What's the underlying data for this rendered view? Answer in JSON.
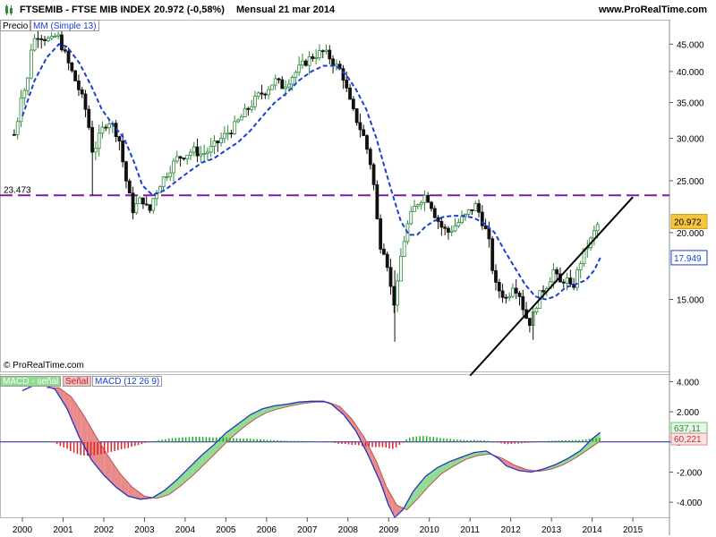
{
  "header": {
    "ticker": "FTSEMIB - FTSE MIB INDEX",
    "last": "20.972 (-0,58%)",
    "period": "Mensual  21 mar 2014",
    "site": "www.ProRealTime.com"
  },
  "legend_top": {
    "precio": "Precio",
    "ma": "MM (Simple 13)"
  },
  "legend_bottom": {
    "macd_signal": "MACD - señal",
    "signal": "Señal",
    "macd": "MACD (12 26 9)"
  },
  "copyright": "© ProRealTime.com",
  "colors": {
    "ma": "#1a3fd6",
    "hline": "#7a1fa2",
    "trend": "#000000",
    "up": "#2e8b3a",
    "down": "#111111",
    "hist_pos": "#22aa22",
    "hist_neg": "#dd2222",
    "fill_pos": "#8fdc8f",
    "fill_neg": "#e88a8a"
  },
  "chart_data": [
    {
      "type": "candlestick",
      "scale": "log",
      "x_labels": [
        "2000",
        "2001",
        "2002",
        "2003",
        "2004",
        "2005",
        "2006",
        "2007",
        "2008",
        "2009",
        "2010",
        "2011",
        "2012",
        "2013",
        "2014",
        "2015"
      ],
      "y_ticks": [
        "45.000",
        "40.000",
        "35.000",
        "30.000",
        "25.000",
        "20.000",
        "15.000"
      ],
      "ylim": [
        11000,
        50000
      ],
      "hline": {
        "value": 23473,
        "label": "23.473"
      },
      "last_price": {
        "value": 20972,
        "label": "20.972"
      },
      "ma_last": {
        "value": 17949,
        "label": "17.949"
      },
      "price_path": [
        [
          1999.8,
          30500
        ],
        [
          1999.9,
          33000
        ],
        [
          2000.0,
          38000
        ],
        [
          2000.1,
          36000
        ],
        [
          2000.2,
          44000
        ],
        [
          2000.35,
          47000
        ],
        [
          2000.5,
          46500
        ],
        [
          2000.7,
          45500
        ],
        [
          2000.85,
          47000
        ],
        [
          2001.0,
          44000
        ],
        [
          2001.15,
          41000
        ],
        [
          2001.3,
          38500
        ],
        [
          2001.45,
          36000
        ],
        [
          2001.6,
          33000
        ],
        [
          2001.7,
          28500
        ],
        [
          2001.8,
          29000
        ],
        [
          2001.95,
          31000
        ],
        [
          2002.1,
          32500
        ],
        [
          2002.25,
          31500
        ],
        [
          2002.4,
          29500
        ],
        [
          2002.5,
          26000
        ],
        [
          2002.6,
          24000
        ],
        [
          2002.7,
          22000
        ],
        [
          2002.8,
          22500
        ],
        [
          2002.9,
          23000
        ],
        [
          2003.0,
          23000
        ],
        [
          2003.1,
          21500
        ],
        [
          2003.2,
          23000
        ],
        [
          2003.35,
          24500
        ],
        [
          2003.5,
          25500
        ],
        [
          2003.65,
          26500
        ],
        [
          2003.8,
          27500
        ],
        [
          2004.0,
          28000
        ],
        [
          2004.2,
          28500
        ],
        [
          2004.4,
          28000
        ],
        [
          2004.6,
          28500
        ],
        [
          2004.8,
          29500
        ],
        [
          2005.0,
          30500
        ],
        [
          2005.2,
          31500
        ],
        [
          2005.4,
          33000
        ],
        [
          2005.6,
          34500
        ],
        [
          2005.8,
          36000
        ],
        [
          2006.0,
          37000
        ],
        [
          2006.2,
          38500
        ],
        [
          2006.4,
          37500
        ],
        [
          2006.6,
          39000
        ],
        [
          2006.8,
          40500
        ],
        [
          2007.0,
          42000
        ],
        [
          2007.2,
          43000
        ],
        [
          2007.4,
          43500
        ],
        [
          2007.55,
          42500
        ],
        [
          2007.7,
          41000
        ],
        [
          2007.85,
          40000
        ],
        [
          2008.0,
          36000
        ],
        [
          2008.1,
          34000
        ],
        [
          2008.25,
          32000
        ],
        [
          2008.4,
          30000
        ],
        [
          2008.5,
          28000
        ],
        [
          2008.6,
          26000
        ],
        [
          2008.7,
          21500
        ],
        [
          2008.8,
          19000
        ],
        [
          2008.9,
          18500
        ],
        [
          2009.0,
          17000
        ],
        [
          2009.1,
          14500
        ],
        [
          2009.2,
          15500
        ],
        [
          2009.3,
          18000
        ],
        [
          2009.45,
          20500
        ],
        [
          2009.6,
          22000
        ],
        [
          2009.75,
          23000
        ],
        [
          2009.9,
          23500
        ],
        [
          2010.0,
          23000
        ],
        [
          2010.15,
          21500
        ],
        [
          2010.3,
          20500
        ],
        [
          2010.45,
          20000
        ],
        [
          2010.6,
          20500
        ],
        [
          2010.75,
          21000
        ],
        [
          2010.9,
          21500
        ],
        [
          2011.0,
          22000
        ],
        [
          2011.15,
          22500
        ],
        [
          2011.3,
          21000
        ],
        [
          2011.45,
          19500
        ],
        [
          2011.6,
          16000
        ],
        [
          2011.75,
          15500
        ],
        [
          2011.9,
          15000
        ],
        [
          2012.05,
          16000
        ],
        [
          2012.2,
          15500
        ],
        [
          2012.35,
          14000
        ],
        [
          2012.5,
          13500
        ],
        [
          2012.6,
          14500
        ],
        [
          2012.75,
          15500
        ],
        [
          2012.9,
          16000
        ],
        [
          2013.05,
          17000
        ],
        [
          2013.2,
          16000
        ],
        [
          2013.35,
          16500
        ],
        [
          2013.5,
          15500
        ],
        [
          2013.6,
          16500
        ],
        [
          2013.75,
          18000
        ],
        [
          2013.9,
          19000
        ],
        [
          2014.0,
          19500
        ],
        [
          2014.1,
          20500
        ],
        [
          2014.2,
          20972
        ]
      ],
      "ma_path": [
        [
          2000.0,
          33000
        ],
        [
          2000.3,
          38500
        ],
        [
          2000.6,
          42500
        ],
        [
          2000.9,
          45000
        ],
        [
          2001.1,
          44500
        ],
        [
          2001.4,
          41500
        ],
        [
          2001.7,
          37500
        ],
        [
          2001.95,
          34000
        ],
        [
          2002.2,
          32000
        ],
        [
          2002.5,
          30000
        ],
        [
          2002.75,
          27000
        ],
        [
          2002.95,
          24500
        ],
        [
          2003.2,
          23500
        ],
        [
          2003.5,
          24000
        ],
        [
          2003.8,
          25000
        ],
        [
          2004.1,
          26000
        ],
        [
          2004.4,
          27000
        ],
        [
          2004.7,
          27500
        ],
        [
          2005.0,
          28500
        ],
        [
          2005.3,
          29500
        ],
        [
          2005.6,
          31000
        ],
        [
          2005.9,
          33000
        ],
        [
          2006.2,
          35000
        ],
        [
          2006.5,
          36500
        ],
        [
          2006.8,
          38500
        ],
        [
          2007.1,
          40000
        ],
        [
          2007.4,
          41000
        ],
        [
          2007.7,
          41000
        ],
        [
          2007.95,
          39500
        ],
        [
          2008.2,
          37000
        ],
        [
          2008.45,
          34000
        ],
        [
          2008.7,
          30000
        ],
        [
          2008.9,
          26500
        ],
        [
          2009.1,
          23500
        ],
        [
          2009.3,
          21000
        ],
        [
          2009.5,
          19800
        ],
        [
          2009.7,
          19800
        ],
        [
          2009.9,
          20500
        ],
        [
          2010.1,
          21000
        ],
        [
          2010.35,
          21400
        ],
        [
          2010.6,
          21500
        ],
        [
          2010.85,
          21500
        ],
        [
          2011.1,
          21300
        ],
        [
          2011.35,
          20800
        ],
        [
          2011.6,
          20000
        ],
        [
          2011.85,
          18500
        ],
        [
          2012.1,
          17200
        ],
        [
          2012.35,
          16000
        ],
        [
          2012.6,
          15200
        ],
        [
          2012.85,
          15000
        ],
        [
          2013.1,
          15200
        ],
        [
          2013.35,
          15800
        ],
        [
          2013.6,
          16000
        ],
        [
          2013.85,
          16300
        ],
        [
          2014.05,
          17000
        ],
        [
          2014.2,
          17949
        ]
      ],
      "trendline": [
        [
          2011.0,
          10800
        ],
        [
          2015.0,
          23300
        ]
      ]
    },
    {
      "type": "area",
      "name": "MACD (12 26 9)",
      "y_ticks": [
        "4.000",
        "2.000",
        "0",
        "-2.000",
        "-4.000"
      ],
      "ylim": [
        -5000,
        4500
      ],
      "last_macd": {
        "value": 637.11,
        "label": "637,11"
      },
      "last_signal": {
        "value": 60.221,
        "label": "60,221"
      },
      "macd_path": [
        [
          2000.0,
          3400
        ],
        [
          2000.4,
          3900
        ],
        [
          2000.8,
          3500
        ],
        [
          2001.1,
          2200
        ],
        [
          2001.4,
          300
        ],
        [
          2001.7,
          -1200
        ],
        [
          2002.0,
          -2200
        ],
        [
          2002.3,
          -3000
        ],
        [
          2002.6,
          -3600
        ],
        [
          2002.9,
          -3800
        ],
        [
          2003.2,
          -3700
        ],
        [
          2003.5,
          -3200
        ],
        [
          2003.8,
          -2500
        ],
        [
          2004.1,
          -1700
        ],
        [
          2004.4,
          -900
        ],
        [
          2004.7,
          -200
        ],
        [
          2005.0,
          600
        ],
        [
          2005.3,
          1200
        ],
        [
          2005.6,
          1800
        ],
        [
          2005.9,
          2200
        ],
        [
          2006.2,
          2400
        ],
        [
          2006.5,
          2500
        ],
        [
          2006.8,
          2650
        ],
        [
          2007.1,
          2700
        ],
        [
          2007.4,
          2700
        ],
        [
          2007.6,
          2500
        ],
        [
          2007.9,
          1800
        ],
        [
          2008.2,
          700
        ],
        [
          2008.5,
          -900
        ],
        [
          2008.8,
          -2700
        ],
        [
          2009.0,
          -4200
        ],
        [
          2009.15,
          -5000
        ],
        [
          2009.35,
          -4500
        ],
        [
          2009.6,
          -3300
        ],
        [
          2009.9,
          -2300
        ],
        [
          2010.2,
          -1700
        ],
        [
          2010.5,
          -1300
        ],
        [
          2010.8,
          -1000
        ],
        [
          2011.1,
          -700
        ],
        [
          2011.4,
          -600
        ],
        [
          2011.7,
          -1100
        ],
        [
          2011.9,
          -1600
        ],
        [
          2012.2,
          -1900
        ],
        [
          2012.5,
          -2000
        ],
        [
          2012.8,
          -1800
        ],
        [
          2013.1,
          -1500
        ],
        [
          2013.4,
          -1100
        ],
        [
          2013.7,
          -600
        ],
        [
          2014.0,
          200
        ],
        [
          2014.2,
          637
        ]
      ],
      "signal_path": [
        [
          2000.6,
          3600
        ],
        [
          2000.9,
          3600
        ],
        [
          2001.2,
          3000
        ],
        [
          2001.5,
          1800
        ],
        [
          2001.8,
          400
        ],
        [
          2002.1,
          -900
        ],
        [
          2002.4,
          -2100
        ],
        [
          2002.7,
          -3000
        ],
        [
          2003.0,
          -3600
        ],
        [
          2003.3,
          -3750
        ],
        [
          2003.6,
          -3500
        ],
        [
          2003.9,
          -2900
        ],
        [
          2004.2,
          -2200
        ],
        [
          2004.5,
          -1400
        ],
        [
          2004.8,
          -600
        ],
        [
          2005.1,
          200
        ],
        [
          2005.4,
          900
        ],
        [
          2005.7,
          1500
        ],
        [
          2006.0,
          1950
        ],
        [
          2006.3,
          2200
        ],
        [
          2006.6,
          2400
        ],
        [
          2006.9,
          2550
        ],
        [
          2007.2,
          2650
        ],
        [
          2007.5,
          2650
        ],
        [
          2007.8,
          2350
        ],
        [
          2008.1,
          1500
        ],
        [
          2008.4,
          300
        ],
        [
          2008.7,
          -1300
        ],
        [
          2008.95,
          -3000
        ],
        [
          2009.2,
          -4200
        ],
        [
          2009.45,
          -4500
        ],
        [
          2009.7,
          -3800
        ],
        [
          2010.0,
          -2900
        ],
        [
          2010.3,
          -2100
        ],
        [
          2010.6,
          -1600
        ],
        [
          2010.9,
          -1150
        ],
        [
          2011.2,
          -900
        ],
        [
          2011.5,
          -800
        ],
        [
          2011.8,
          -1100
        ],
        [
          2012.1,
          -1550
        ],
        [
          2012.4,
          -1850
        ],
        [
          2012.7,
          -1950
        ],
        [
          2013.0,
          -1800
        ],
        [
          2013.3,
          -1500
        ],
        [
          2013.6,
          -1050
        ],
        [
          2013.9,
          -500
        ],
        [
          2014.2,
          60
        ]
      ]
    }
  ]
}
